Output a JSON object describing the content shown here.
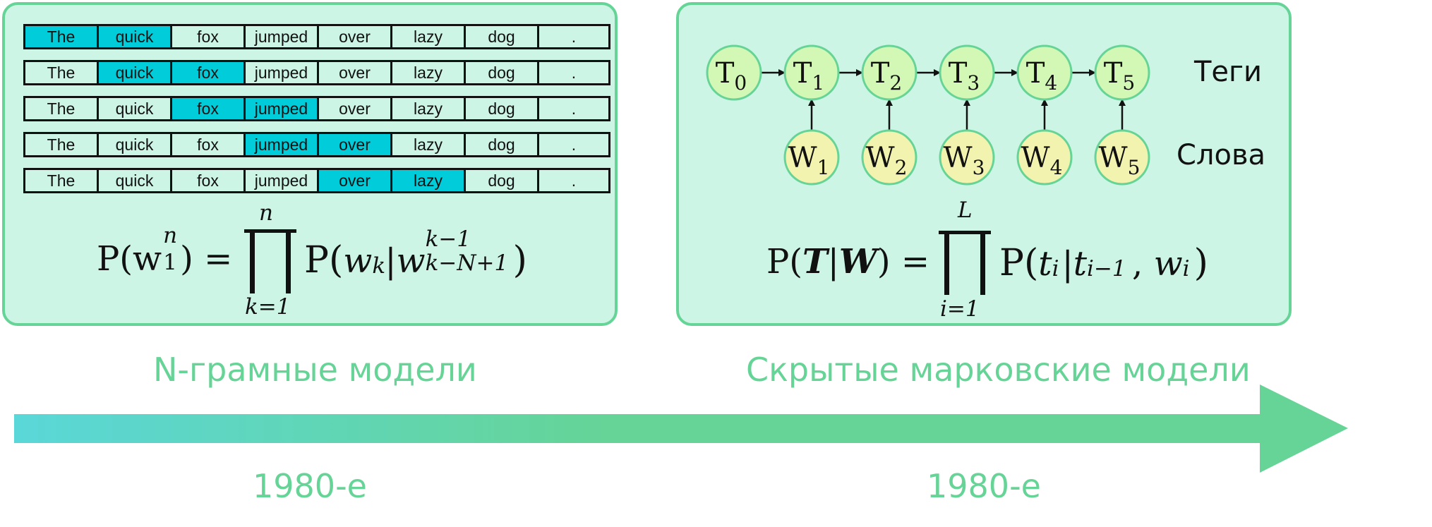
{
  "ngram": {
    "rows": [
      {
        "words": [
          "The",
          "quick",
          "fox",
          "jumped",
          "over",
          "lazy",
          "dog",
          "."
        ],
        "highlight": [
          0,
          1
        ]
      },
      {
        "words": [
          "The",
          "quick",
          "fox",
          "jumped",
          "over",
          "lazy",
          "dog",
          "."
        ],
        "highlight": [
          1,
          2
        ]
      },
      {
        "words": [
          "The",
          "quick",
          "fox",
          "jumped",
          "over",
          "lazy",
          "dog",
          "."
        ],
        "highlight": [
          2,
          3
        ]
      },
      {
        "words": [
          "The",
          "quick",
          "fox",
          "jumped",
          "over",
          "lazy",
          "dog",
          "."
        ],
        "highlight": [
          3,
          4
        ]
      },
      {
        "words": [
          "The",
          "quick",
          "fox",
          "jumped",
          "over",
          "lazy",
          "dog",
          "."
        ],
        "highlight": [
          4,
          5
        ]
      }
    ],
    "formula": {
      "lhs": "P(w",
      "lhs_sub": "1",
      "lhs_sup": "n",
      "lhs_close": ") =",
      "prod_upper": "n",
      "prod_lower": "k=1",
      "rhs": "P(w",
      "rhs_sub": "k",
      "rhs_mid": "|w",
      "rhs_sup2": "k−1",
      "rhs_sub2": "k−N+1",
      "rhs_close": ")"
    },
    "caption": "N-грамные модели",
    "date": "1980-е"
  },
  "hmm": {
    "tags": [
      {
        "letter": "T",
        "sub": "0"
      },
      {
        "letter": "T",
        "sub": "1"
      },
      {
        "letter": "T",
        "sub": "2"
      },
      {
        "letter": "T",
        "sub": "3"
      },
      {
        "letter": "T",
        "sub": "4"
      },
      {
        "letter": "T",
        "sub": "5"
      }
    ],
    "words": [
      {
        "letter": "W",
        "sub": "1"
      },
      {
        "letter": "W",
        "sub": "2"
      },
      {
        "letter": "W",
        "sub": "3"
      },
      {
        "letter": "W",
        "sub": "4"
      },
      {
        "letter": "W",
        "sub": "5"
      }
    ],
    "tags_label": "Теги",
    "words_label": "Слова",
    "formula": {
      "lhs": "P(",
      "lhs_T": "T",
      "lhs_bar": "|",
      "lhs_W": "W",
      "lhs_close": ") =",
      "prod_upper": "L",
      "prod_lower": "i=1",
      "rhs": "P(t",
      "rhs_sub1": "i",
      "rhs_mid": "|t",
      "rhs_sub2": "i−1",
      "rhs_comma": ", w",
      "rhs_sub3": "i",
      "rhs_close": ")"
    },
    "caption": "Скрытые марковские модели",
    "date": "1980-е"
  },
  "colors": {
    "panel_fill": "#cdf5e6",
    "panel_border": "#66d496",
    "highlight": "#00cdd9",
    "tag_node": "#d3f7b5",
    "word_node": "#f3f3b0",
    "node_border": "#66d496",
    "caption": "#66d496",
    "arrow_start": "#5ad7d8",
    "arrow_end": "#66d496"
  }
}
